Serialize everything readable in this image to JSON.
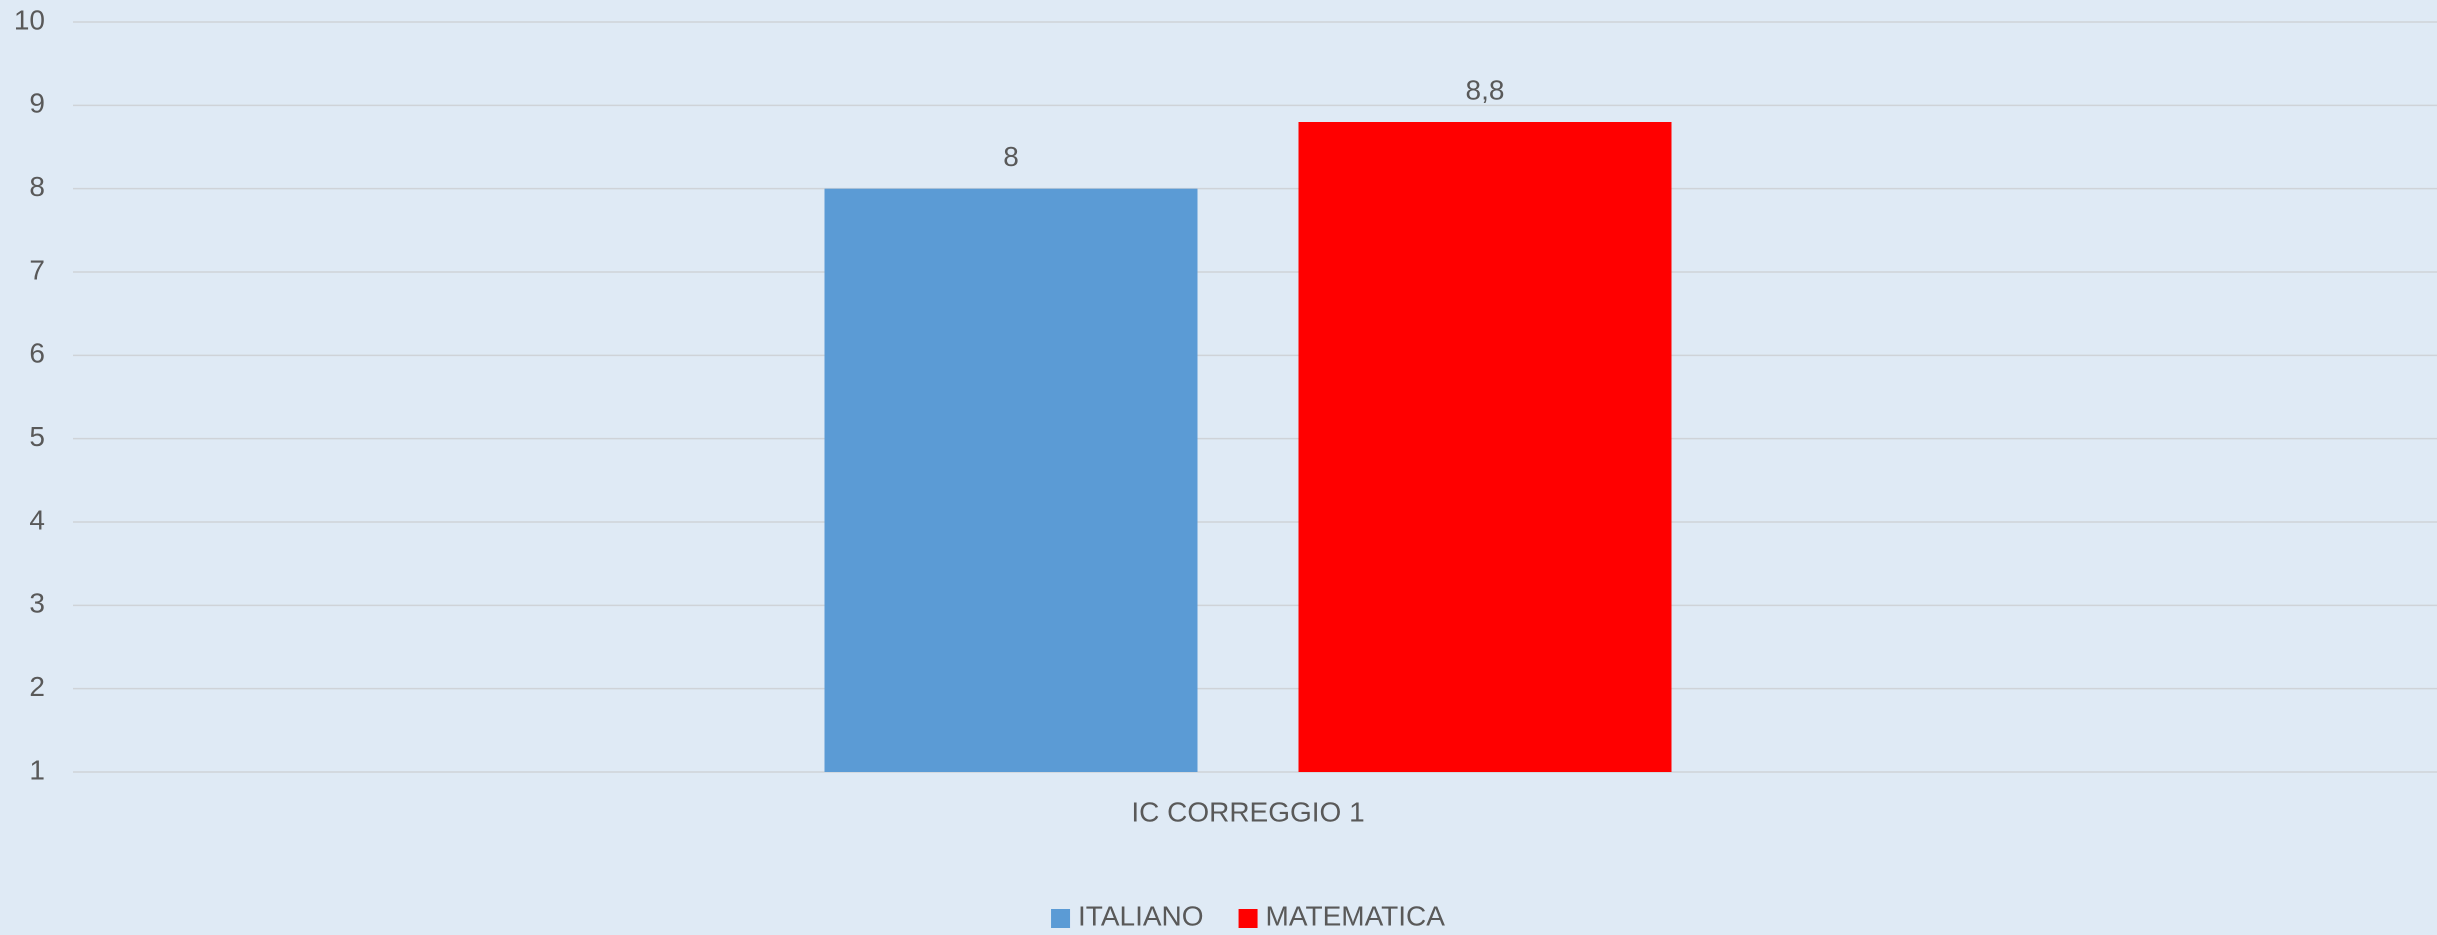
{
  "chart_data": {
    "type": "bar",
    "categories": [
      "IC CORREGGIO 1"
    ],
    "series": [
      {
        "name": "ITALIANO",
        "color": "#5b9bd5",
        "values": [
          8
        ],
        "value_labels": [
          "8"
        ]
      },
      {
        "name": "MATEMATICA",
        "color": "#ff0000",
        "values": [
          8.8
        ],
        "value_labels": [
          "8,8"
        ]
      }
    ],
    "ylim": [
      1,
      10
    ],
    "yticks": [
      1,
      2,
      3,
      4,
      5,
      6,
      7,
      8,
      9,
      10
    ],
    "grid": true,
    "legend": "bottom"
  }
}
